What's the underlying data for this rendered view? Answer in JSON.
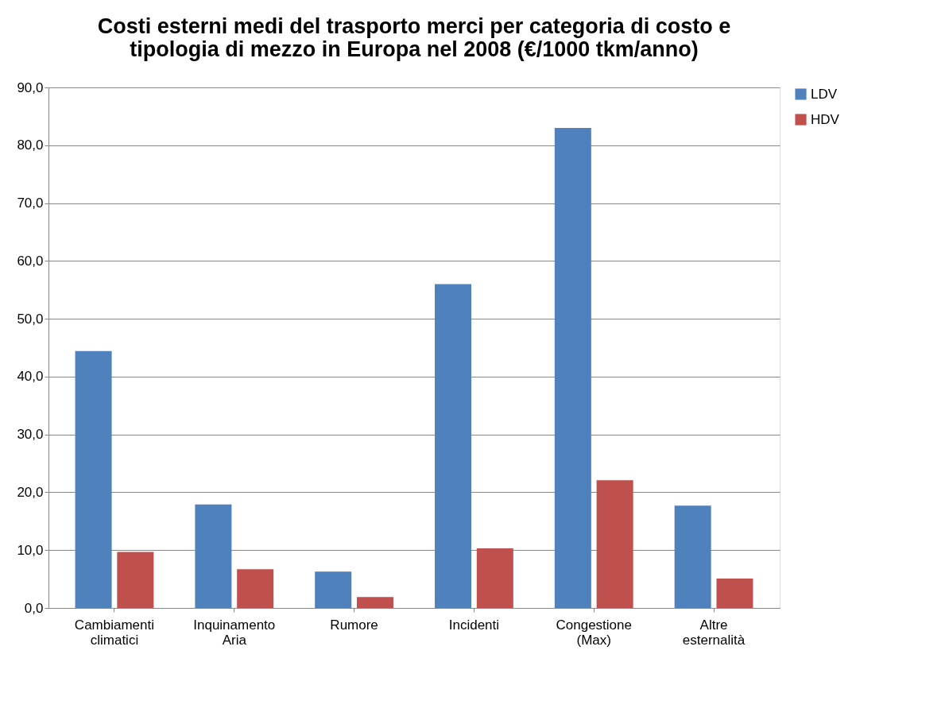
{
  "chart_data": {
    "type": "bar",
    "title": "Costi esterni medi del trasporto merci per categoria di costo e tipologia di mezzo in Europa nel 2008 (€/1000 tkm/anno)",
    "categories": [
      "Cambiamenti climatici",
      "Inquinamento Aria",
      "Rumore",
      "Incidenti",
      "Congestione (Max)",
      "Altre esternalità"
    ],
    "series": [
      {
        "name": "LDV",
        "color": "#4f81bd",
        "values": [
          44.4,
          17.9,
          6.3,
          56.0,
          83.0,
          17.7
        ]
      },
      {
        "name": "HDV",
        "color": "#c0504d",
        "values": [
          9.7,
          6.7,
          1.9,
          10.3,
          22.1,
          5.1
        ]
      }
    ],
    "ylim": [
      0,
      90
    ],
    "yticks": [
      {
        "value": 0,
        "label": "0,0"
      },
      {
        "value": 10,
        "label": "10,0"
      },
      {
        "value": 20,
        "label": "20,0"
      },
      {
        "value": 30,
        "label": "30,0"
      },
      {
        "value": 40,
        "label": "40,0"
      },
      {
        "value": 50,
        "label": "50,0"
      },
      {
        "value": 60,
        "label": "60,0"
      },
      {
        "value": 70,
        "label": "70,0"
      },
      {
        "value": 80,
        "label": "80,0"
      },
      {
        "value": 90,
        "label": "90,0"
      }
    ],
    "grid": "y",
    "legend": "right"
  }
}
